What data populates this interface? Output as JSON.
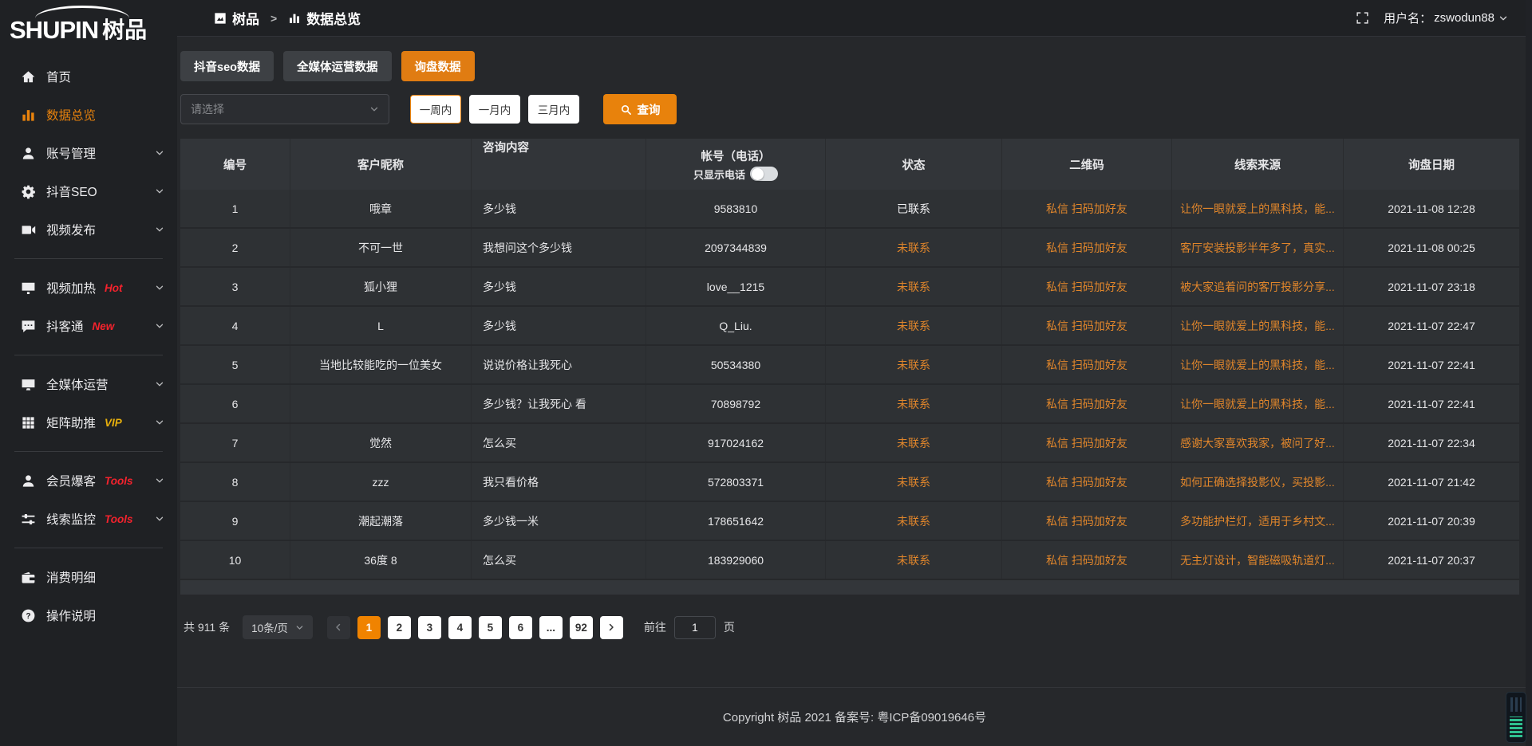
{
  "accent_color": "#e8820c",
  "logo": {
    "brand": "SHUPIN",
    "brand_cn": "树品"
  },
  "topbar": {
    "breadcrumb_root": "树品",
    "breadcrumb_sep": ">",
    "breadcrumb_current": "数据总览",
    "user_label": "用户名：",
    "username": "zswodun88"
  },
  "sidebar": {
    "items": [
      {
        "label": "首页",
        "icon": "home-icon"
      },
      {
        "label": "数据总览",
        "icon": "chart-icon",
        "active": true
      },
      {
        "label": "账号管理",
        "icon": "user-icon",
        "chevron": true
      },
      {
        "label": "抖音SEO",
        "icon": "gear-icon",
        "chevron": true
      },
      {
        "label": "视频发布",
        "icon": "camera-icon",
        "chevron": true,
        "divider_after": true
      },
      {
        "label": "视频加热",
        "icon": "tv-icon",
        "badge": "Hot",
        "badge_color": "#f5222d",
        "chevron": true
      },
      {
        "label": "抖客通",
        "icon": "comment-icon",
        "badge": "New",
        "badge_color": "#f5222d",
        "chevron": true,
        "divider_after": true
      },
      {
        "label": "全媒体运营",
        "icon": "monitor-icon",
        "chevron": true
      },
      {
        "label": "矩阵助推",
        "icon": "grid-icon",
        "badge": "VIP",
        "badge_color": "#e8b00c",
        "chevron": true,
        "divider_after": true
      },
      {
        "label": "会员爆客",
        "icon": "member-icon",
        "badge": "Tools",
        "badge_color": "#f5222d",
        "chevron": true
      },
      {
        "label": "线索监控",
        "icon": "sliders-icon",
        "badge": "Tools",
        "badge_color": "#f5222d",
        "chevron": true,
        "divider_after": true
      },
      {
        "label": "消费明细",
        "icon": "wallet-icon"
      },
      {
        "label": "操作说明",
        "icon": "question-icon"
      }
    ]
  },
  "tabs": [
    {
      "label": "抖音seo数据"
    },
    {
      "label": "全媒体运营数据"
    },
    {
      "label": "询盘数据",
      "active": true
    }
  ],
  "filters": {
    "select_placeholder": "请选择",
    "ranges": [
      {
        "label": "一周内",
        "active": true
      },
      {
        "label": "一月内"
      },
      {
        "label": "三月内"
      }
    ],
    "search_label": "查询"
  },
  "table": {
    "headers": [
      "编号",
      "客户昵称",
      "咨询内容",
      "帐号（电话）",
      "状态",
      "二维码",
      "线索来源",
      "询盘日期"
    ],
    "phone_toggle_label": "只显示电话",
    "rows": [
      {
        "id": "1",
        "nickname": "哦章",
        "content": "多少钱",
        "account": "9583810",
        "status": "已联系",
        "contacted": true,
        "qrcode": "私信 扫码加好友",
        "source": "让你一眼就爱上的黑科技，能...",
        "date": "2021-11-08 12:28"
      },
      {
        "id": "2",
        "nickname": "不可一世",
        "content": "我想问这个多少钱",
        "account": "2097344839",
        "status": "未联系",
        "contacted": false,
        "qrcode": "私信 扫码加好友",
        "source": "客厅安装投影半年多了，真实...",
        "date": "2021-11-08 00:25"
      },
      {
        "id": "3",
        "nickname": "狐小狸",
        "content": "多少钱",
        "account": "love__1215",
        "status": "未联系",
        "contacted": false,
        "qrcode": "私信 扫码加好友",
        "source": "被大家追着问的客厅投影分享...",
        "date": "2021-11-07 23:18"
      },
      {
        "id": "4",
        "nickname": "L",
        "content": "多少钱",
        "account": "Q_Liu.",
        "status": "未联系",
        "contacted": false,
        "qrcode": "私信 扫码加好友",
        "source": "让你一眼就爱上的黑科技，能...",
        "date": "2021-11-07 22:47"
      },
      {
        "id": "5",
        "nickname": "当地比较能吃的一位美女",
        "content": "说说价格让我死心",
        "account": "50534380",
        "status": "未联系",
        "contacted": false,
        "qrcode": "私信 扫码加好友",
        "source": "让你一眼就爱上的黑科技，能...",
        "date": "2021-11-07 22:41"
      },
      {
        "id": "6",
        "nickname": "",
        "content": "多少钱？让我死心 看",
        "account": "70898792",
        "status": "未联系",
        "contacted": false,
        "qrcode": "私信 扫码加好友",
        "source": "让你一眼就爱上的黑科技，能...",
        "date": "2021-11-07 22:41"
      },
      {
        "id": "7",
        "nickname": "觉然",
        "content": "怎么买",
        "account": "917024162",
        "status": "未联系",
        "contacted": false,
        "qrcode": "私信 扫码加好友",
        "source": "感谢大家喜欢我家，被问了好...",
        "date": "2021-11-07 22:34"
      },
      {
        "id": "8",
        "nickname": "zzz",
        "content": "我只看价格",
        "account": "572803371",
        "status": "未联系",
        "contacted": false,
        "qrcode": "私信 扫码加好友",
        "source": "如何正确选择投影仪，买投影...",
        "date": "2021-11-07 21:42"
      },
      {
        "id": "9",
        "nickname": "潮起潮落",
        "content": "多少钱一米",
        "account": "178651642",
        "status": "未联系",
        "contacted": false,
        "qrcode": "私信 扫码加好友",
        "source": "多功能护栏灯，适用于乡村文...",
        "date": "2021-11-07 20:39"
      },
      {
        "id": "10",
        "nickname": "36度 8",
        "content": "怎么买",
        "account": "183929060",
        "status": "未联系",
        "contacted": false,
        "qrcode": "私信 扫码加好友",
        "source": "无主灯设计，智能磁吸轨道灯...",
        "date": "2021-11-07 20:37"
      }
    ]
  },
  "pagination": {
    "total": "共 911 条",
    "page_size": "10条/页",
    "pages": [
      {
        "label": "1",
        "active": true
      },
      {
        "label": "2"
      },
      {
        "label": "3"
      },
      {
        "label": "4"
      },
      {
        "label": "5"
      },
      {
        "label": "6"
      },
      {
        "label": "..."
      },
      {
        "label": "92"
      }
    ],
    "goto_label": "前往",
    "goto_value": "1",
    "page_label": "页"
  },
  "footer": {
    "copyright": "Copyright 树品 2021 备案号: 粤ICP备09019646号"
  }
}
